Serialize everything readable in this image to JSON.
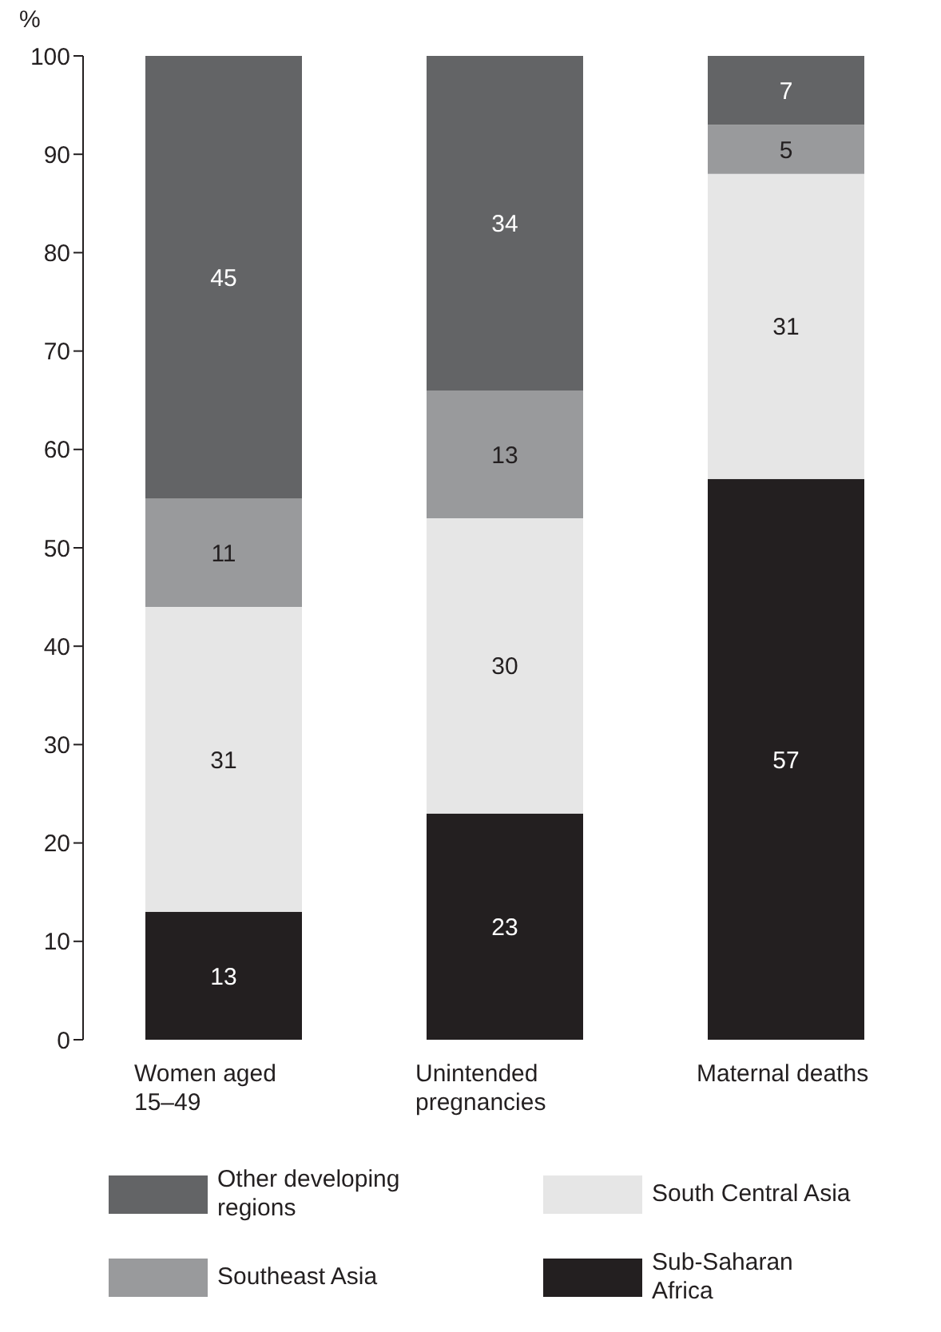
{
  "chart_data": {
    "type": "bar",
    "stacked": true,
    "ylabel": "%",
    "categories": [
      "Women aged 15–49",
      "Unintended pregnancies",
      "Maternal deaths"
    ],
    "series": [
      {
        "name": "Sub-Saharan Africa",
        "color": "#231f20",
        "values": [
          13,
          23,
          57
        ]
      },
      {
        "name": "South Central Asia",
        "color": "#e6e6e6",
        "values": [
          31,
          30,
          31
        ]
      },
      {
        "name": "Southeast Asia",
        "color": "#999a9c",
        "values": [
          11,
          13,
          5
        ]
      },
      {
        "name": "Other developing regions",
        "color": "#636466",
        "values": [
          45,
          34,
          7
        ]
      }
    ],
    "ylim": [
      0,
      100
    ],
    "yticks": [
      0,
      10,
      20,
      30,
      40,
      50,
      60,
      70,
      80,
      90,
      100
    ],
    "legend": "bottom",
    "data_labels": true
  }
}
